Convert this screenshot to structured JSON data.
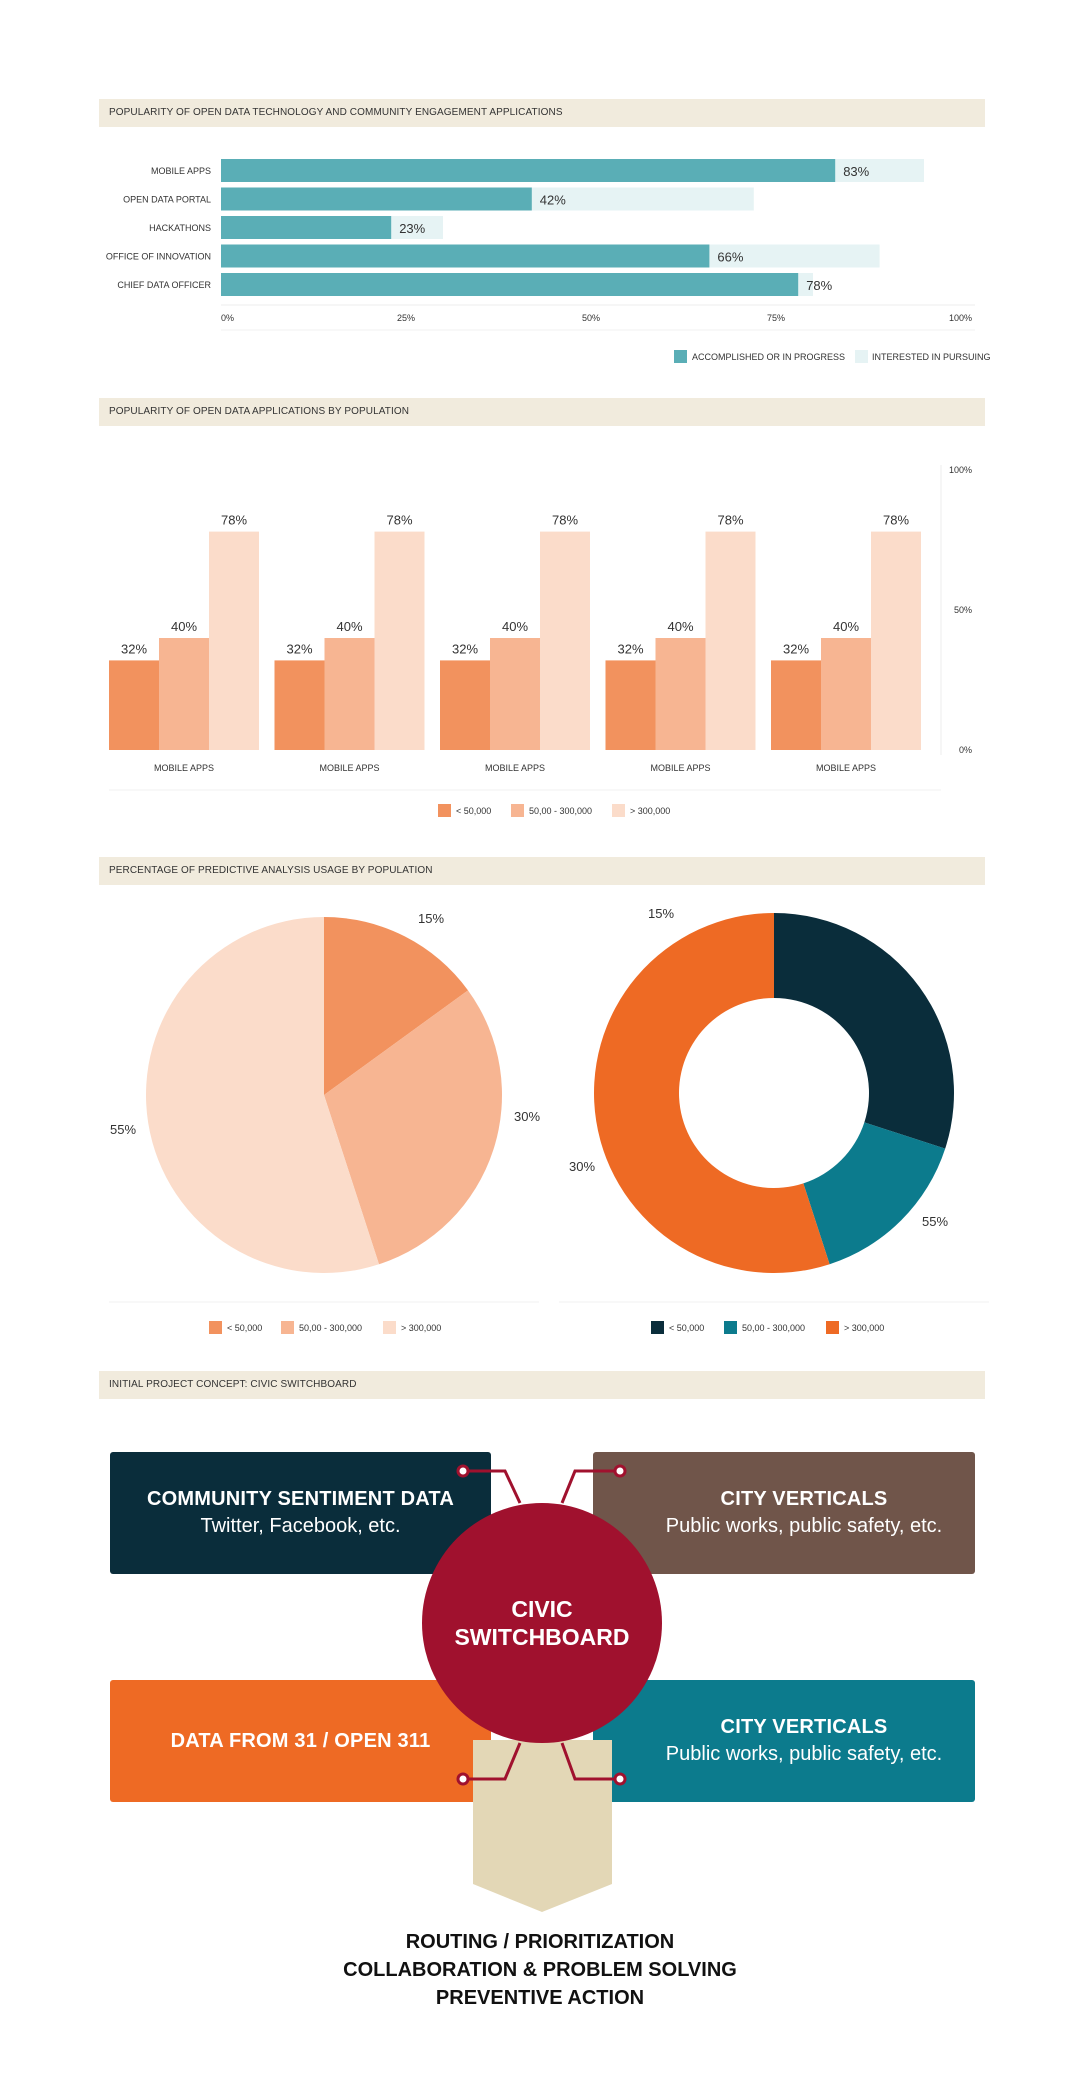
{
  "chart_data": [
    {
      "type": "bar",
      "orientation": "horizontal",
      "title": "POPULARITY OF OPEN DATA TECHNOLOGY AND COMMUNITY ENGAGEMENT APPLICATIONS",
      "categories": [
        "MOBILE APPS",
        "OPEN DATA PORTAL",
        "HACKATHONS",
        "OFFICE OF INNOVATION",
        "CHIEF DATA OFFICER"
      ],
      "series": [
        {
          "name": "ACCOMPLISHED OR IN PROGRESS",
          "values": [
            83,
            42,
            23,
            66,
            78
          ],
          "color": "#5aaeb6"
        },
        {
          "name": "INTERESTED IN PURSUING",
          "values": [
            95,
            72,
            30,
            89,
            80
          ],
          "color": "#e6f3f4"
        }
      ],
      "value_labels": [
        "83%",
        "42%",
        "23%",
        "66%",
        "78%"
      ],
      "xticks": [
        "0%",
        "25%",
        "50%",
        "75%",
        "100%"
      ],
      "xlim": [
        0,
        100
      ],
      "legend": "bottom-right"
    },
    {
      "type": "bar",
      "title": "POPULARITY OF OPEN DATA APPLICATIONS BY POPULATION",
      "categories": [
        "MOBILE APPS",
        "MOBILE APPS",
        "MOBILE APPS",
        "MOBILE APPS",
        "MOBILE APPS"
      ],
      "series": [
        {
          "name": "< 50,000",
          "values": [
            32,
            32,
            32,
            32,
            32
          ],
          "color": "#f2925e"
        },
        {
          "name": "50,00 - 300,000",
          "values": [
            40,
            40,
            40,
            40,
            40
          ],
          "color": "#f7b592"
        },
        {
          "name": "> 300,000",
          "values": [
            78,
            78,
            78,
            78,
            78
          ],
          "color": "#fbdcca"
        }
      ],
      "yticks": [
        "100%",
        "50%",
        "0%"
      ],
      "ylim": [
        0,
        100
      ],
      "legend": "bottom-center"
    },
    {
      "type": "pie",
      "title": "PERCENTAGE OF PREDICTIVE ANALYSIS USAGE BY POPULATION",
      "categories": [
        "< 50,000",
        "50,00 - 300,000",
        "> 300,000"
      ],
      "values": [
        15,
        30,
        55
      ],
      "labels": [
        "15%",
        "30%",
        "55%"
      ],
      "colors": [
        "#f2925e",
        "#f7b592",
        "#fbdcca"
      ],
      "legend": "bottom-center"
    },
    {
      "type": "pie",
      "variant": "donut",
      "categories": [
        "< 50,000",
        "50,00 - 300,000",
        "> 300,000"
      ],
      "values": [
        30,
        15,
        55
      ],
      "labels": [
        "30%",
        "15%",
        "55%"
      ],
      "colors": [
        "#0a2d3b",
        "#0c7b8d",
        "#ee6a24"
      ],
      "legend": "bottom-center"
    }
  ],
  "concept": {
    "title": "INITIAL PROJECT CONCEPT: CIVIC SWITCHBOARD",
    "box1_title": "COMMUNITY SENTIMENT DATA",
    "box1_sub": "Twitter, Facebook, etc.",
    "box2_title": "CITY VERTICALS",
    "box2_sub": "Public works, public safety, etc.",
    "box3_title": "DATA FROM 31 / OPEN 311",
    "box4_title": "CITY VERTICALS",
    "box4_sub": "Public works, public safety, etc.",
    "hub_line1": "CIVIC",
    "hub_line2": "SWITCHBOARD",
    "outcome_line1": "ROUTING / PRIORITIZATION",
    "outcome_line2": "COLLABORATION & PROBLEM SOLVING",
    "outcome_line3": "PREVENTIVE ACTION",
    "colors": {
      "box1": "#0a2d3b",
      "box2": "#70554a",
      "box3": "#ee6a24",
      "box4": "#0c7b8d",
      "hub": "#a0112e",
      "arrow": "#e3d7b6"
    }
  }
}
